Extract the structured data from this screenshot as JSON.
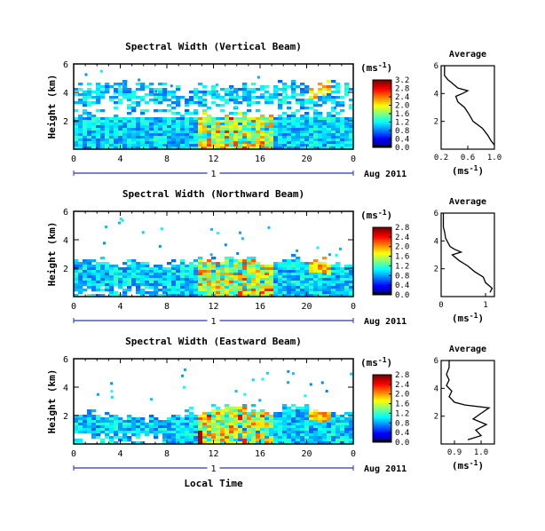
{
  "figure": {
    "xlabel": "Local Time",
    "date_label": "Aug 2011",
    "day_label": "1",
    "unit_label": "(ms",
    "unit_sup": "-1",
    "unit_close": ")",
    "avg_unit": "(ms",
    "avg_unit_sup": "-1",
    "avg_unit_close": ")",
    "avg_title": "Average",
    "ylabel": "Height (km)"
  },
  "chart_data": [
    {
      "type": "heatmap",
      "title": "Spectral Width (Vertical Beam)",
      "xlabel": "Local Time",
      "ylabel": "Height (km)",
      "xlim": [
        0,
        24
      ],
      "ylim": [
        0,
        6
      ],
      "xticks": [
        "0",
        "4",
        "8",
        "12",
        "16",
        "20",
        "0"
      ],
      "yticks": [
        "2",
        "4",
        "6"
      ],
      "colorbar": {
        "ticks": [
          "0.0",
          "0.4",
          "0.8",
          "1.2",
          "1.6",
          "2.0",
          "2.4",
          "2.8",
          "3.2"
        ],
        "range": [
          0,
          3.2
        ]
      },
      "echo_top_km": [
        4.4,
        4.3,
        4.3,
        4.2,
        4.4,
        4.3,
        4.2,
        4.3,
        4.1,
        4.0,
        4.2,
        4.1,
        4.3,
        4.2,
        4.3,
        4.4,
        4.3,
        4.5,
        4.6,
        4.5,
        4.4,
        4.5,
        4.5,
        4.4
      ],
      "gap_km": [
        2.0,
        3.6
      ],
      "average_profile": {
        "title": "Average",
        "xlabel": "(ms-1)",
        "xlim": [
          0.2,
          1.0
        ],
        "xticks": [
          "0.2",
          "0.6",
          "1.0"
        ],
        "yticks": [
          "2",
          "4",
          "6"
        ],
        "heights": [
          0.3,
          0.6,
          1.0,
          1.5,
          2.0,
          2.5,
          3.0,
          3.4,
          3.8,
          4.0,
          4.2,
          4.4,
          4.6,
          4.8,
          5.0,
          5.3,
          5.6,
          6.0
        ],
        "values": [
          1.0,
          0.95,
          0.9,
          0.82,
          0.68,
          0.62,
          0.55,
          0.45,
          0.42,
          0.52,
          0.6,
          0.45,
          0.4,
          0.35,
          0.3,
          0.25,
          0.25,
          0.25
        ]
      }
    },
    {
      "type": "heatmap",
      "title": "Spectral Width (Northward Beam)",
      "xlabel": "Local Time",
      "ylabel": "Height (km)",
      "xlim": [
        0,
        24
      ],
      "ylim": [
        0,
        6
      ],
      "xticks": [
        "0",
        "4",
        "8",
        "12",
        "16",
        "20",
        "0"
      ],
      "yticks": [
        "2",
        "4",
        "6"
      ],
      "colorbar": {
        "ticks": [
          "0.0",
          "0.4",
          "0.8",
          "1.2",
          "1.6",
          "2.0",
          "2.4",
          "2.8"
        ],
        "range": [
          0,
          2.8
        ]
      },
      "echo_top_km": [
        2.4,
        2.3,
        2.4,
        2.3,
        2.2,
        2.3,
        2.1,
        2.0,
        2.2,
        2.3,
        2.4,
        2.3,
        2.5,
        2.6,
        2.5,
        2.6,
        2.4,
        2.5,
        2.6,
        2.5,
        2.4,
        2.3,
        2.3,
        2.2
      ],
      "average_profile": {
        "title": "Average",
        "xlabel": "(ms-1)",
        "xlim": [
          0,
          1.2
        ],
        "xticks": [
          "0",
          "1"
        ],
        "yticks": [
          "2",
          "4",
          "6"
        ],
        "heights": [
          0.3,
          0.6,
          1.0,
          1.4,
          1.8,
          2.2,
          2.6,
          3.0,
          3.2,
          3.4,
          3.6,
          3.9,
          4.2,
          4.6,
          5.0,
          5.5,
          6.0
        ],
        "values": [
          1.1,
          1.15,
          1.0,
          0.95,
          0.75,
          0.6,
          0.4,
          0.25,
          0.45,
          0.3,
          0.2,
          0.15,
          0.1,
          0.08,
          0.05,
          0.05,
          0.05
        ]
      }
    },
    {
      "type": "heatmap",
      "title": "Spectral Width (Eastward Beam)",
      "xlabel": "Local Time",
      "ylabel": "Height (km)",
      "xlim": [
        0,
        24
      ],
      "ylim": [
        0,
        6
      ],
      "xticks": [
        "0",
        "4",
        "8",
        "12",
        "16",
        "20",
        "0"
      ],
      "yticks": [
        "2",
        "4",
        "6"
      ],
      "colorbar": {
        "ticks": [
          "0.0",
          "0.4",
          "0.8",
          "1.2",
          "1.6",
          "2.0",
          "2.4",
          "2.8"
        ],
        "range": [
          0,
          2.8
        ]
      },
      "echo_top_km": [
        2.0,
        2.1,
        1.9,
        2.0,
        1.8,
        1.9,
        1.7,
        1.6,
        1.8,
        2.0,
        2.2,
        2.1,
        2.4,
        2.5,
        2.4,
        2.3,
        2.2,
        2.3,
        2.5,
        2.6,
        2.4,
        2.2,
        2.1,
        2.0
      ],
      "average_profile": {
        "title": "Average",
        "xlabel": "(ms-1)",
        "xlim": [
          0.85,
          1.05
        ],
        "xticks": [
          "0.9",
          "1.0"
        ],
        "yticks": [
          "2",
          "4",
          "6"
        ],
        "heights": [
          0.3,
          0.6,
          1.0,
          1.4,
          1.8,
          2.2,
          2.6,
          2.8,
          3.0,
          3.4,
          3.8,
          4.2,
          4.6,
          5.0,
          5.5,
          6.0
        ],
        "values": [
          0.95,
          1.0,
          0.98,
          1.02,
          0.97,
          1.0,
          1.03,
          0.94,
          0.9,
          0.88,
          0.89,
          0.87,
          0.88,
          0.87,
          0.88,
          0.88
        ]
      }
    }
  ]
}
